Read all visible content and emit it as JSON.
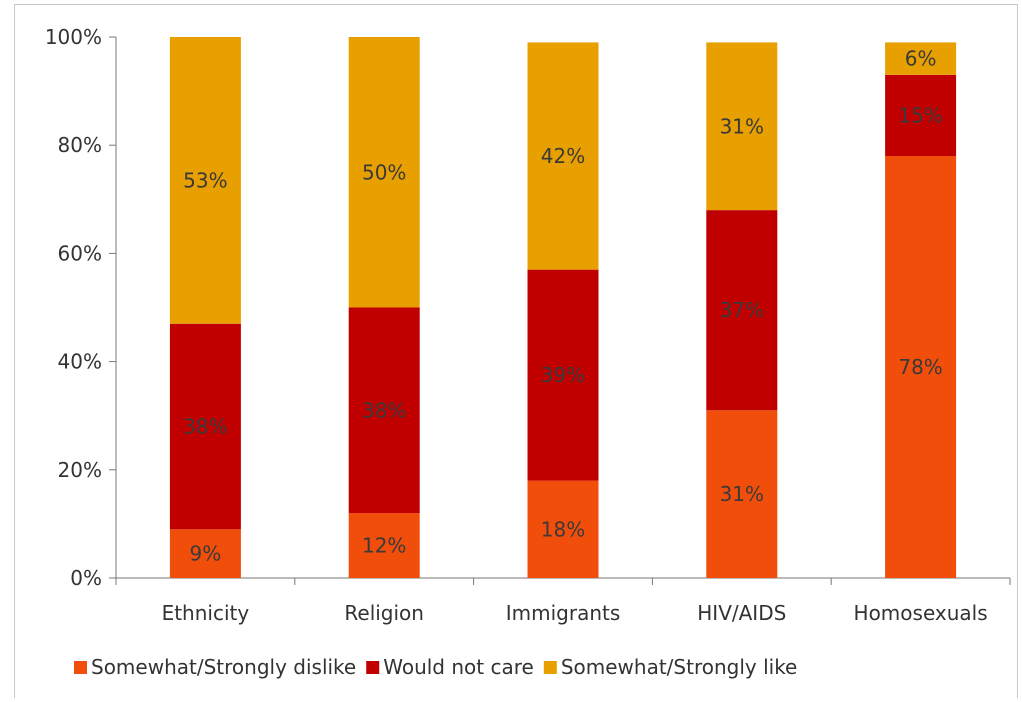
{
  "chart_data": {
    "type": "bar",
    "stacked": true,
    "categories": [
      "Ethnicity",
      "Religion",
      "Immigrants",
      "HIV/AIDS",
      "Homosexuals"
    ],
    "series": [
      {
        "name": "Somewhat/Strongly dislike",
        "values": [
          9,
          12,
          18,
          31,
          78
        ],
        "labels": [
          "9%",
          "12%",
          "18%",
          "31%",
          "78%"
        ],
        "color": "#f04e0a"
      },
      {
        "name": "Would not care",
        "values": [
          38,
          38,
          39,
          37,
          15
        ],
        "labels": [
          "38%",
          "38%",
          "39%",
          "37%",
          "15%"
        ],
        "color": "#c00000"
      },
      {
        "name": "Somewhat/Strongly like",
        "values": [
          53,
          50,
          42,
          31,
          6
        ],
        "labels": [
          "53%",
          "50%",
          "42%",
          "31%",
          "6%"
        ],
        "color": "#e8a000"
      }
    ],
    "yticks": [
      "0%",
      "20%",
      "40%",
      "60%",
      "80%",
      "100%"
    ],
    "ylim": [
      0,
      100
    ],
    "grid": false,
    "legend_position": "bottom",
    "title": "",
    "xlabel": "",
    "ylabel": ""
  }
}
